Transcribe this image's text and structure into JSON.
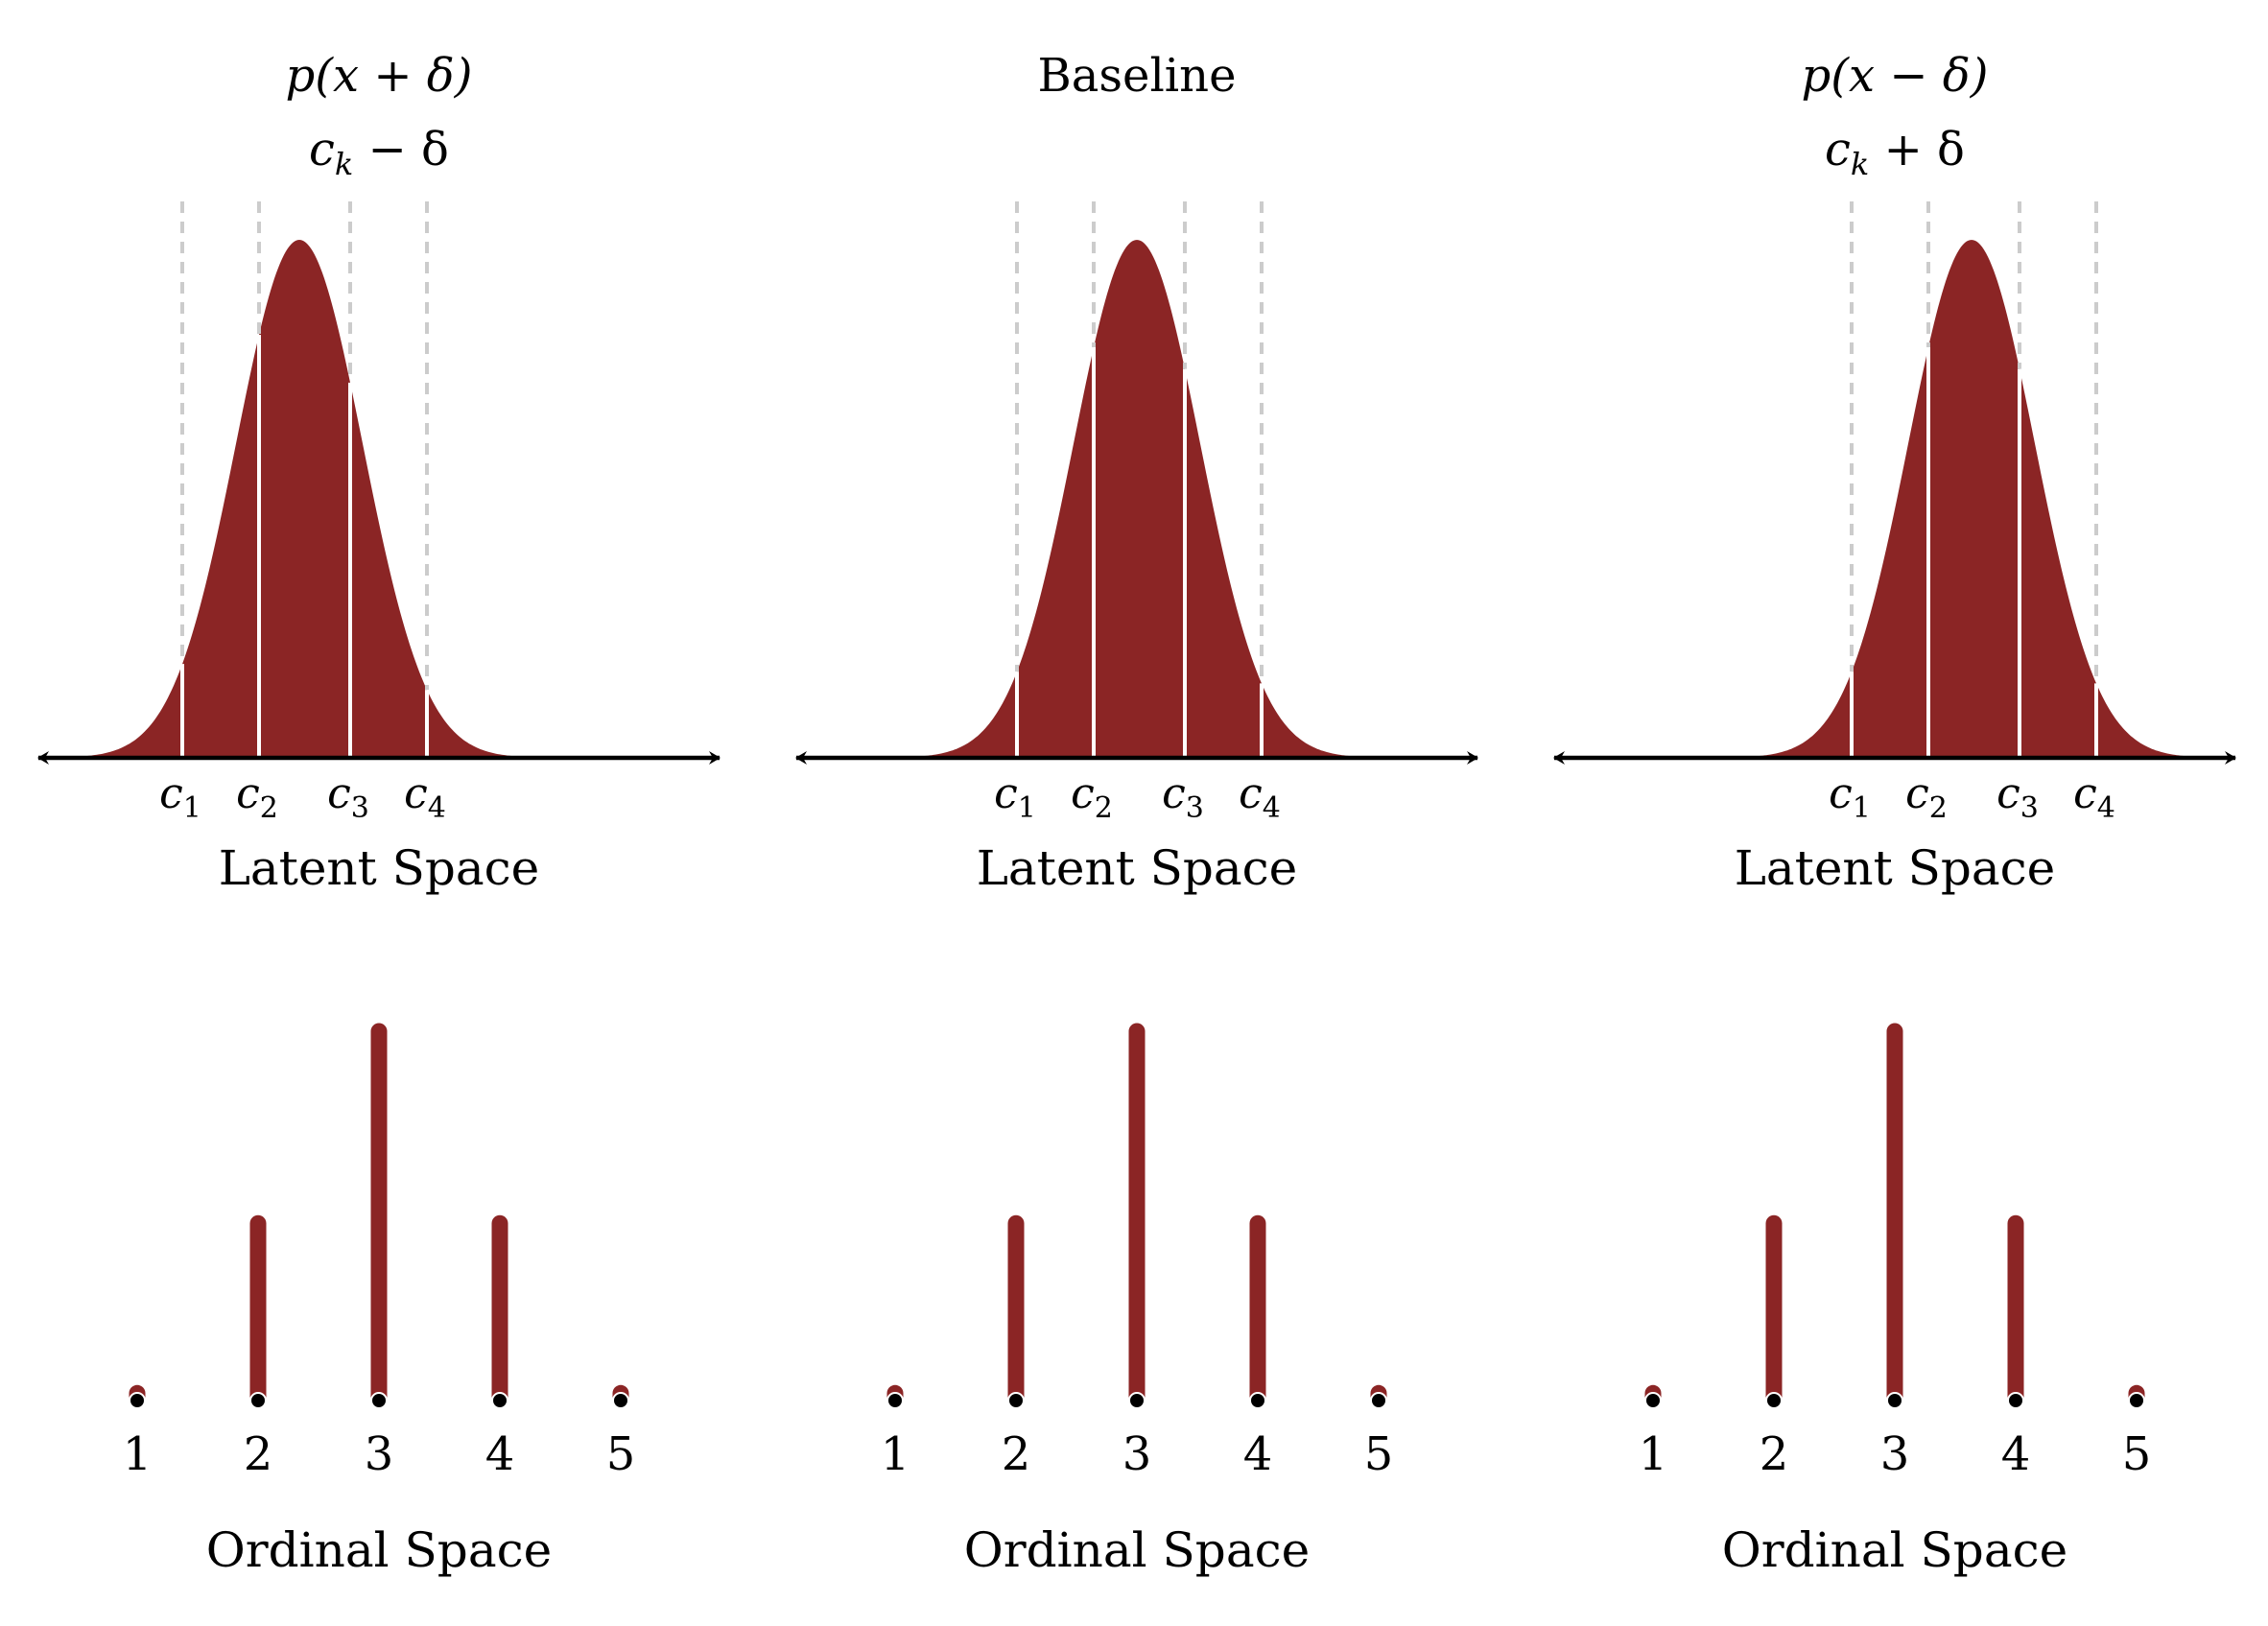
{
  "colors": {
    "fill": "#8b2525",
    "cutpoint_line": "#cccccc",
    "axis": "#000000",
    "background": "#ffffff"
  },
  "panels": [
    {
      "title_line1": {
        "text": "p(x + δ)",
        "style": "math"
      },
      "title_line2": {
        "base": "c",
        "sub": "k",
        "rest": " − δ"
      },
      "latent_axis_label": "Latent Space",
      "ordinal_axis_label": "Ordinal Space",
      "cutpoint_labels": [
        {
          "base": "c",
          "sub": "1"
        },
        {
          "base": "c",
          "sub": "2"
        },
        {
          "base": "c",
          "sub": "3"
        },
        {
          "base": "c",
          "sub": "4"
        }
      ],
      "ordinal_ticks": [
        "1",
        "2",
        "3",
        "4",
        "5"
      ],
      "ordinal_probabilities": [
        0.01,
        0.24,
        0.5,
        0.24,
        0.01
      ]
    },
    {
      "title_line1": {
        "text": "Baseline",
        "style": "plain"
      },
      "title_line2": null,
      "latent_axis_label": "Latent Space",
      "ordinal_axis_label": "Ordinal Space",
      "cutpoint_labels": [
        {
          "base": "c",
          "sub": "1"
        },
        {
          "base": "c",
          "sub": "2"
        },
        {
          "base": "c",
          "sub": "3"
        },
        {
          "base": "c",
          "sub": "4"
        }
      ],
      "ordinal_ticks": [
        "1",
        "2",
        "3",
        "4",
        "5"
      ],
      "ordinal_probabilities": [
        0.01,
        0.24,
        0.5,
        0.24,
        0.01
      ]
    },
    {
      "title_line1": {
        "text": "p(x − δ)",
        "style": "math"
      },
      "title_line2": {
        "base": "c",
        "sub": "k",
        "rest": " + δ"
      },
      "latent_axis_label": "Latent Space",
      "ordinal_axis_label": "Ordinal Space",
      "cutpoint_labels": [
        {
          "base": "c",
          "sub": "1"
        },
        {
          "base": "c",
          "sub": "2"
        },
        {
          "base": "c",
          "sub": "3"
        },
        {
          "base": "c",
          "sub": "4"
        }
      ],
      "ordinal_ticks": [
        "1",
        "2",
        "3",
        "4",
        "5"
      ],
      "ordinal_probabilities": [
        0.01,
        0.24,
        0.5,
        0.24,
        0.01
      ]
    }
  ]
}
